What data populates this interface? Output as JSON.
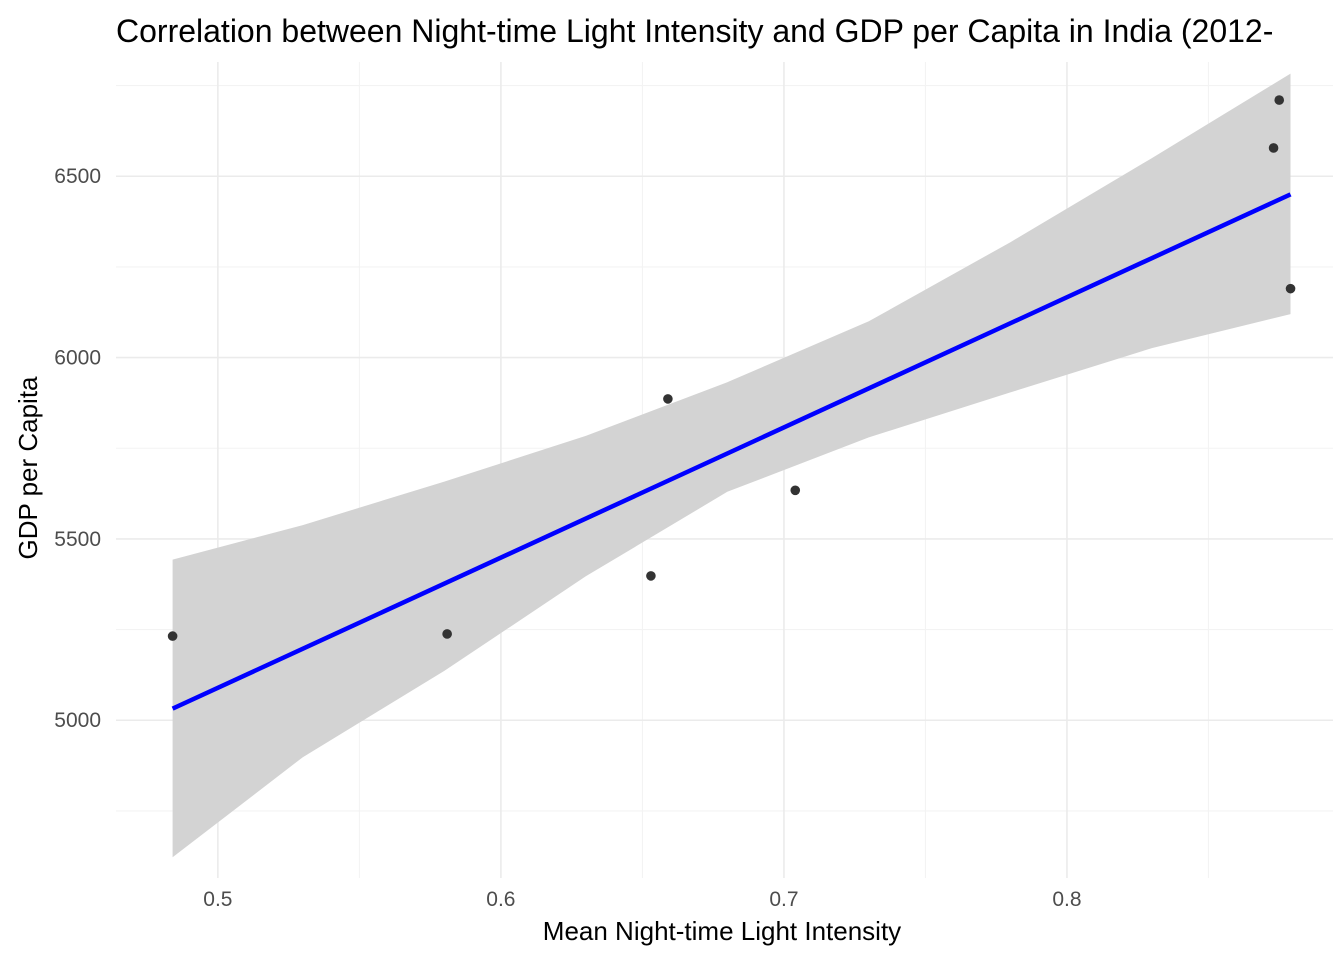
{
  "chart_data": {
    "type": "scatter",
    "title": "Correlation between Night-time Light Intensity and GDP per Capita in India (2012-",
    "xlabel": "Mean Night-time Light Intensity",
    "ylabel": "GDP per Capita",
    "xlim": [
      0.464,
      0.894
    ],
    "ylim": [
      4565,
      6815
    ],
    "x_ticks": [
      0.5,
      0.6,
      0.7,
      0.8
    ],
    "x_tick_labels": [
      "0.5",
      "0.6",
      "0.7",
      "0.8"
    ],
    "y_ticks": [
      5000,
      5500,
      6000,
      6500
    ],
    "y_tick_labels": [
      "5000",
      "5500",
      "6000",
      "6500"
    ],
    "grid": true,
    "points": [
      {
        "x": 0.484,
        "y": 5232
      },
      {
        "x": 0.581,
        "y": 5238
      },
      {
        "x": 0.653,
        "y": 5398
      },
      {
        "x": 0.659,
        "y": 5886
      },
      {
        "x": 0.704,
        "y": 5634
      },
      {
        "x": 0.873,
        "y": 6578
      },
      {
        "x": 0.875,
        "y": 6710
      },
      {
        "x": 0.879,
        "y": 6190
      }
    ],
    "trend_line": {
      "method": "linear",
      "color": "#0000ff",
      "start": {
        "x": 0.484,
        "y": 5032
      },
      "end": {
        "x": 0.879,
        "y": 6450
      }
    },
    "confidence_band": {
      "color": "#d3d3d3",
      "x": [
        0.484,
        0.53,
        0.58,
        0.63,
        0.68,
        0.73,
        0.78,
        0.83,
        0.879
      ],
      "upper": [
        5443,
        5538,
        5658,
        5784,
        5932,
        6100,
        6318,
        6550,
        6783
      ],
      "lower": [
        4622,
        4898,
        5136,
        5397,
        5630,
        5780,
        5904,
        6026,
        6120
      ]
    },
    "point_color": "#333333"
  }
}
